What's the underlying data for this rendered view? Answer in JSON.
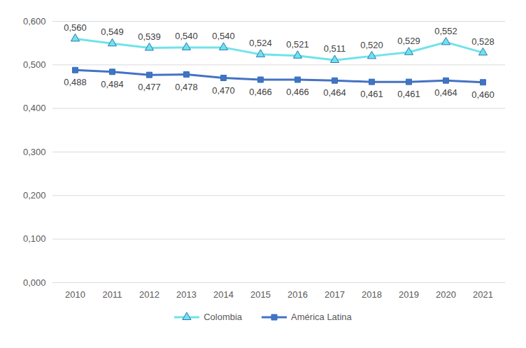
{
  "chart_data": {
    "type": "line",
    "categories": [
      "2010",
      "2011",
      "2012",
      "2013",
      "2014",
      "2015",
      "2016",
      "2017",
      "2018",
      "2019",
      "2020",
      "2021"
    ],
    "series": [
      {
        "name": "Colombia",
        "color": "#6FE3EA",
        "marker": "triangle",
        "values": [
          0.56,
          0.549,
          0.539,
          0.54,
          0.54,
          0.524,
          0.521,
          0.511,
          0.52,
          0.529,
          0.552,
          0.528
        ],
        "value_labels": [
          "0,560",
          "0,549",
          "0,539",
          "0,540",
          "0,540",
          "0,524",
          "0,521",
          "0,511",
          "0,520",
          "0,529",
          "0,552",
          "0,528"
        ]
      },
      {
        "name": "América Latina",
        "color": "#4472C4",
        "marker": "square",
        "values": [
          0.488,
          0.484,
          0.477,
          0.478,
          0.47,
          0.466,
          0.466,
          0.464,
          0.461,
          0.461,
          0.464,
          0.46
        ],
        "value_labels": [
          "0,488",
          "0,484",
          "0,477",
          "0,478",
          "0,470",
          "0,466",
          "0,466",
          "0,464",
          "0,461",
          "0,461",
          "0,464",
          "0,460"
        ]
      }
    ],
    "ylim": [
      0,
      0.6
    ],
    "yticks": [
      {
        "value": 0,
        "label": "0,000"
      },
      {
        "value": 0.1,
        "label": "0,100"
      },
      {
        "value": 0.2,
        "label": "0,200"
      },
      {
        "value": 0.3,
        "label": "0,300"
      },
      {
        "value": 0.4,
        "label": "0,400"
      },
      {
        "value": 0.5,
        "label": "0,500"
      },
      {
        "value": 0.6,
        "label": "0,600"
      }
    ],
    "grid": true,
    "data_labels": true,
    "legend": "bottom"
  }
}
